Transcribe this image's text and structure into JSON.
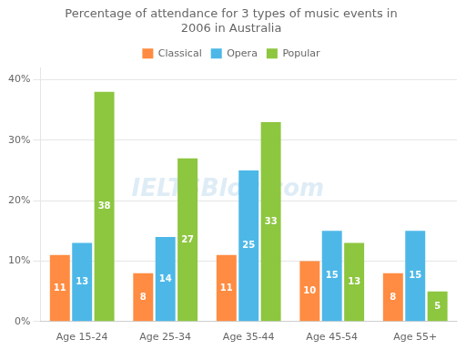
{
  "chart_data": {
    "type": "bar",
    "title": "Percentage of attendance for 3 types of music events in\n2006 in Australia",
    "categories": [
      "Age 15-24",
      "Age 25-34",
      "Age 35-44",
      "Age 45-54",
      "Age 55+"
    ],
    "series": [
      {
        "name": "Classical",
        "color": "#FF8C42",
        "values": [
          11,
          8,
          11,
          10,
          8
        ]
      },
      {
        "name": "Opera",
        "color": "#4DB8E8",
        "values": [
          13,
          14,
          25,
          15,
          15
        ]
      },
      {
        "name": "Popular",
        "color": "#8DC63F",
        "values": [
          38,
          27,
          33,
          13,
          5
        ]
      }
    ],
    "ylim": [
      0,
      42
    ],
    "yticks": [
      {
        "value": 0,
        "label": "0%"
      },
      {
        "value": 10,
        "label": "10%"
      },
      {
        "value": 20,
        "label": "20%"
      },
      {
        "value": 30,
        "label": "30%"
      },
      {
        "value": 40,
        "label": "40%"
      }
    ],
    "grid": true,
    "legend": "top",
    "data_labels": true,
    "annotations": [
      "IELTSBlog.com"
    ]
  }
}
